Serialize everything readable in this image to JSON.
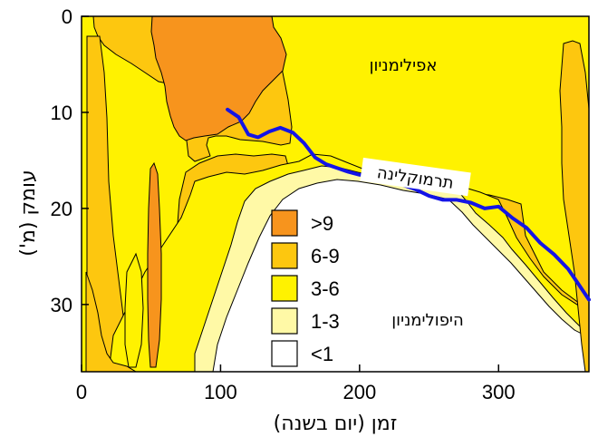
{
  "chart_data": {
    "type": "contour",
    "xlabel": "זמן (יום בשנה)",
    "ylabel": "עומק (מ')",
    "xlim": [
      0,
      365
    ],
    "ylim": [
      0,
      37
    ],
    "y_inverted": true,
    "x_ticks": [
      0,
      100,
      200,
      300
    ],
    "y_ticks": [
      0,
      10,
      20,
      30
    ],
    "legend": [
      {
        "label": ">9",
        "color": "#f7941d"
      },
      {
        "label": "6-9",
        "color": "#fdc70f"
      },
      {
        "label": "3-6",
        "color": "#fff200"
      },
      {
        "label": "1-3",
        "color": "#fff9a6"
      },
      {
        "label": "<1",
        "color": "#ffffff"
      }
    ],
    "annotations": {
      "epilimnion": "אפילימניון",
      "hypolimnion": "היפולימניון",
      "thermocline": "תרמוקלינה"
    },
    "thermocline_line": {
      "color": "#1414e6",
      "x": [
        105,
        113,
        120,
        127,
        135,
        143,
        152,
        160,
        168,
        176,
        184,
        192,
        200,
        210,
        220,
        230,
        240,
        250,
        260,
        270,
        280,
        290,
        300,
        310,
        320,
        330,
        340,
        350,
        358,
        365
      ],
      "y": [
        9.7,
        10.5,
        12.3,
        12.6,
        12.0,
        11.6,
        12.1,
        13.2,
        14.7,
        15.4,
        15.8,
        16.2,
        16.5,
        16.6,
        17.0,
        17.5,
        18.0,
        18.7,
        19.1,
        19.1,
        19.4,
        20.0,
        19.8,
        21.0,
        22.0,
        23.6,
        24.8,
        26.3,
        28.0,
        29.5
      ]
    }
  }
}
